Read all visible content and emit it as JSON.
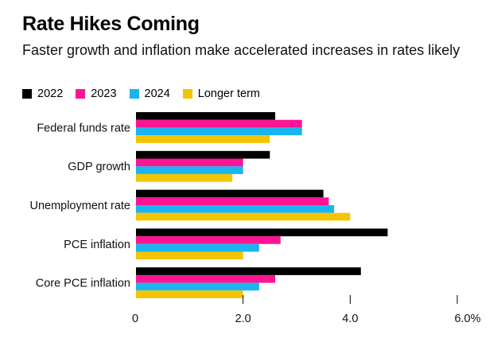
{
  "chart_data": {
    "type": "bar",
    "orientation": "horizontal",
    "title": "Rate Hikes Coming",
    "subtitle": "Faster growth and inflation make accelerated increases in rates likely",
    "categories": [
      "Federal funds rate",
      "GDP growth",
      "Unemployment rate",
      "PCE inflation",
      "Core PCE inflation"
    ],
    "series": [
      {
        "name": "2022",
        "color": "#000000",
        "values": [
          2.6,
          2.5,
          3.5,
          4.7,
          4.2
        ]
      },
      {
        "name": "2023",
        "color": "#ff1493",
        "values": [
          3.1,
          2.0,
          3.6,
          2.7,
          2.6
        ]
      },
      {
        "name": "2024",
        "color": "#1ab5f0",
        "values": [
          3.1,
          2.0,
          3.7,
          2.3,
          2.3
        ]
      },
      {
        "name": "Longer term",
        "color": "#f5c400",
        "values": [
          2.5,
          1.8,
          4.0,
          2.0,
          2.0
        ]
      }
    ],
    "xlim": [
      0,
      6.0
    ],
    "x_ticks": [
      0,
      2.0,
      4.0,
      6.0
    ],
    "x_tick_labels": [
      "0",
      "2.0",
      "4.0",
      "6.0%"
    ],
    "xlabel": "",
    "ylabel": "",
    "legend_position": "top-left",
    "grid": false
  }
}
